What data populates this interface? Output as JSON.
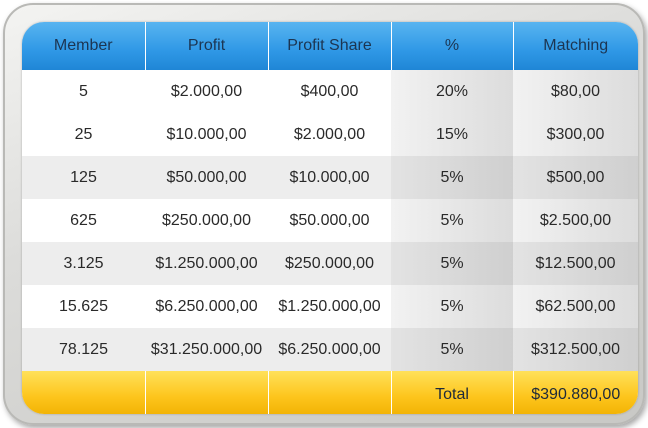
{
  "table": {
    "headers": [
      "Member",
      "Profit",
      "Profit Share",
      "%",
      "Matching"
    ],
    "rows": [
      [
        "5",
        "$2.000,00",
        "$400,00",
        "20%",
        "$80,00"
      ],
      [
        "25",
        "$10.000,00",
        "$2.000,00",
        "15%",
        "$300,00"
      ],
      [
        "125",
        "$50.000,00",
        "$10.000,00",
        "5%",
        "$500,00"
      ],
      [
        "625",
        "$250.000,00",
        "$50.000,00",
        "5%",
        "$2.500,00"
      ],
      [
        "3.125",
        "$1.250.000,00",
        "$250.000,00",
        "5%",
        "$12.500,00"
      ],
      [
        "15.625",
        "$6.250.000,00",
        "$1.250.000,00",
        "5%",
        "$62.500,00"
      ],
      [
        "78.125",
        "$31.250.000,00",
        "$6.250.000,00",
        "5%",
        "$312.500,00"
      ]
    ],
    "footer": {
      "total_label": "Total",
      "total_value": "$390.880,00"
    }
  },
  "colors": {
    "header_blue": "#2f98e6",
    "header_text": "#1c3552",
    "footer_yellow": "#fdc51c",
    "row_alt_gray": "#ededed"
  }
}
